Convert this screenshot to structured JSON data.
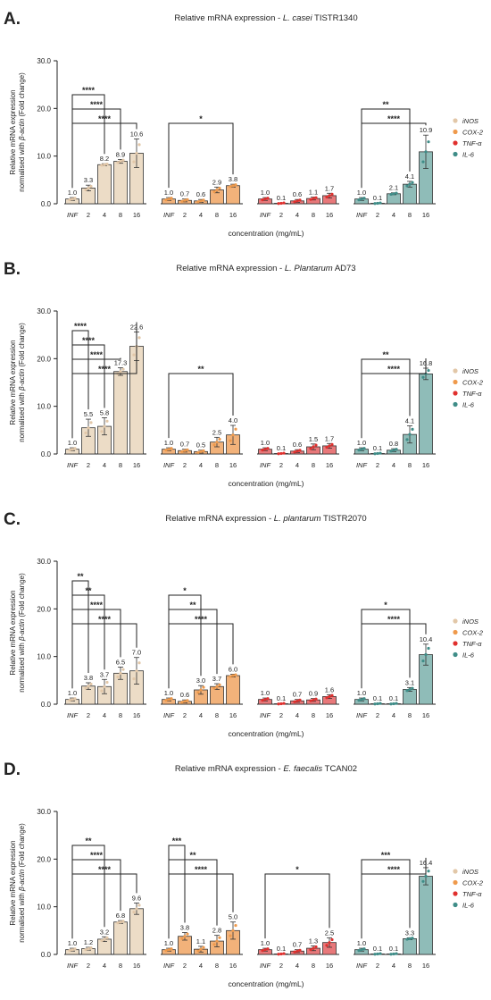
{
  "legend": [
    {
      "label": "iNOS",
      "color": "#ecdcc6",
      "dot": "#e2c7a8"
    },
    {
      "label": "COX-2",
      "color": "#f2b27a",
      "dot": "#ef9a4c"
    },
    {
      "label": "TNF-α",
      "color": "#e8787a",
      "dot": "#e0302e"
    },
    {
      "label": "IL-6",
      "color": "#8fbcb8",
      "dot": "#3f8d88"
    }
  ],
  "ylabel_line1": "Relative mRNA expression",
  "ylabel_line2_prefix": "normalised with ",
  "ylabel_line2_gene": "β-actin",
  "ylabel_line2_suffix": " (Fold change)",
  "xlabel": "concentration (mg/mL)",
  "categories": [
    "INF",
    "2",
    "4",
    "8",
    "16"
  ],
  "chart_data": [
    {
      "type": "bar",
      "panel": "A.",
      "title_prefix": "Relative mRNA expression - ",
      "title_species": "L. casei",
      "title_strain": " TISTR1340",
      "yticks": [
        "0.0",
        "10.0",
        "20.0",
        "30.0"
      ],
      "ylim": [
        0,
        30
      ],
      "series": [
        {
          "name": "iNOS",
          "values": [
            1.0,
            3.3,
            8.2,
            8.9,
            10.6
          ],
          "labels": [
            "1.0",
            "3.3",
            "8.2",
            "8.9",
            "10.6"
          ],
          "err": [
            0.3,
            0.6,
            0.2,
            0.4,
            3.0
          ],
          "sig": [
            {
              "to": 2,
              "text": "****"
            },
            {
              "to": 3,
              "text": "****"
            },
            {
              "to": 4,
              "text": "****"
            }
          ]
        },
        {
          "name": "COX-2",
          "values": [
            1.0,
            0.7,
            0.6,
            2.9,
            3.8
          ],
          "labels": [
            "1.0",
            "0.7",
            "0.6",
            "2.9",
            "3.8"
          ],
          "err": [
            0.3,
            0.3,
            0.3,
            0.6,
            0.3
          ],
          "sig": [
            {
              "to": 4,
              "text": "*"
            }
          ]
        },
        {
          "name": "TNF-α",
          "values": [
            1.0,
            0.1,
            0.6,
            1.1,
            1.7
          ],
          "labels": [
            "1.0",
            "0.1",
            "0.6",
            "1.1",
            "1.7"
          ],
          "err": [
            0.3,
            0.1,
            0.3,
            0.3,
            0.5
          ],
          "sig": []
        },
        {
          "name": "IL-6",
          "values": [
            1.0,
            0.1,
            2.1,
            4.1,
            10.9
          ],
          "labels": [
            "1.0",
            "0.1",
            "2.1",
            "4.1",
            "10.9"
          ],
          "err": [
            0.3,
            0.1,
            0.2,
            0.6,
            3.5
          ],
          "sig": [
            {
              "to": 3,
              "text": "**"
            },
            {
              "to": 4,
              "text": "****"
            }
          ]
        }
      ]
    },
    {
      "type": "bar",
      "panel": "B.",
      "title_prefix": "Relative mRNA expression - ",
      "title_species": "L. Plantarum",
      "title_strain": " AD73",
      "yticks": [
        "0.0",
        "10.0",
        "20.0",
        "30.0"
      ],
      "ylim": [
        0,
        30
      ],
      "series": [
        {
          "name": "iNOS",
          "values": [
            1.0,
            5.5,
            5.8,
            17.3,
            22.6
          ],
          "labels": [
            "1.0",
            "5.5",
            "5.8",
            "17.3",
            "22.6"
          ],
          "err": [
            0.3,
            1.8,
            1.8,
            0.8,
            3.0
          ],
          "sig": [
            {
              "to": 1,
              "text": "****"
            },
            {
              "to": 2,
              "text": "****"
            },
            {
              "to": 3,
              "text": "****"
            },
            {
              "to": 4,
              "text": "****"
            }
          ]
        },
        {
          "name": "COX-2",
          "values": [
            1.0,
            0.7,
            0.5,
            2.5,
            4.0
          ],
          "labels": [
            "1.0",
            "0.7",
            "0.5",
            "2.5",
            "4.0"
          ],
          "err": [
            0.3,
            0.3,
            0.3,
            1.0,
            2.0
          ],
          "sig": [
            {
              "to": 4,
              "text": "**"
            }
          ]
        },
        {
          "name": "TNF-α",
          "values": [
            1.0,
            0.1,
            0.6,
            1.5,
            1.7
          ],
          "labels": [
            "1.0",
            "0.1",
            "0.6",
            "1.5",
            "1.7"
          ],
          "err": [
            0.3,
            0.1,
            0.3,
            0.6,
            0.5
          ],
          "sig": []
        },
        {
          "name": "IL-6",
          "values": [
            1.0,
            0.1,
            0.8,
            4.1,
            16.8
          ],
          "labels": [
            "1.0",
            "0.1",
            "0.8",
            "4.1",
            "16.8"
          ],
          "err": [
            0.3,
            0.1,
            0.3,
            1.8,
            1.2
          ],
          "sig": [
            {
              "to": 3,
              "text": "**"
            },
            {
              "to": 4,
              "text": "****"
            }
          ]
        }
      ]
    },
    {
      "type": "bar",
      "panel": "C.",
      "title_prefix": "Relative mRNA expression - ",
      "title_species": "L. plantarum",
      "title_strain": " TISTR2070",
      "yticks": [
        "0.0",
        "10.0",
        "20.0",
        "30.0"
      ],
      "ylim": [
        0,
        30
      ],
      "series": [
        {
          "name": "iNOS",
          "values": [
            1.0,
            3.8,
            3.7,
            6.5,
            7.0
          ],
          "labels": [
            "1.0",
            "3.8",
            "3.7",
            "6.5",
            "7.0"
          ],
          "err": [
            0.3,
            0.7,
            1.5,
            1.3,
            2.8
          ],
          "sig": [
            {
              "to": 1,
              "text": "**"
            },
            {
              "to": 2,
              "text": "**"
            },
            {
              "to": 3,
              "text": "****"
            },
            {
              "to": 4,
              "text": "****"
            }
          ]
        },
        {
          "name": "COX-2",
          "values": [
            1.0,
            0.6,
            3.0,
            3.7,
            6.0
          ],
          "labels": [
            "1.0",
            "0.6",
            "3.0",
            "3.7",
            "6.0"
          ],
          "err": [
            0.3,
            0.3,
            0.9,
            0.6,
            0.3
          ],
          "sig": [
            {
              "to": 2,
              "text": "*"
            },
            {
              "to": 3,
              "text": "**"
            },
            {
              "to": 4,
              "text": "****"
            }
          ]
        },
        {
          "name": "TNF-α",
          "values": [
            1.0,
            0.1,
            0.7,
            0.9,
            1.6
          ],
          "labels": [
            "1.0",
            "0.1",
            "0.7",
            "0.9",
            "1.6"
          ],
          "err": [
            0.3,
            0.1,
            0.3,
            0.3,
            0.4
          ],
          "sig": []
        },
        {
          "name": "IL-6",
          "values": [
            1.0,
            0.1,
            0.1,
            3.1,
            10.4
          ],
          "labels": [
            "1.0",
            "0.1",
            "0.1",
            "3.1",
            "10.4"
          ],
          "err": [
            0.3,
            0.1,
            0.1,
            0.4,
            2.2
          ],
          "sig": [
            {
              "to": 3,
              "text": "*"
            },
            {
              "to": 4,
              "text": "****"
            }
          ]
        }
      ]
    },
    {
      "type": "bar",
      "panel": "D.",
      "title_prefix": "Relative mRNA expression - ",
      "title_species": "E. faecalis",
      "title_strain": " TCAN02",
      "yticks": [
        "0.0",
        "10.0",
        "20.0",
        "30.0"
      ],
      "ylim": [
        0,
        30
      ],
      "series": [
        {
          "name": "iNOS",
          "values": [
            1.0,
            1.2,
            3.2,
            6.8,
            9.6
          ],
          "labels": [
            "1.0",
            "1.2",
            "3.2",
            "6.8",
            "9.6"
          ],
          "err": [
            0.3,
            0.3,
            0.5,
            0.3,
            1.2
          ],
          "sig": [
            {
              "to": 2,
              "text": "**"
            },
            {
              "to": 3,
              "text": "****"
            },
            {
              "to": 4,
              "text": "****"
            }
          ]
        },
        {
          "name": "COX-2",
          "values": [
            1.0,
            3.8,
            1.1,
            2.8,
            5.0
          ],
          "labels": [
            "1.0",
            "3.8",
            "1.1",
            "2.8",
            "5.0"
          ],
          "err": [
            0.3,
            0.8,
            0.6,
            1.2,
            1.8
          ],
          "sig": [
            {
              "to": 1,
              "text": "***"
            },
            {
              "to": 3,
              "text": "**"
            },
            {
              "to": 4,
              "text": "****"
            }
          ]
        },
        {
          "name": "TNF-α",
          "values": [
            1.0,
            0.1,
            0.7,
            1.3,
            2.5
          ],
          "labels": [
            "1.0",
            "0.1",
            "0.7",
            "1.3",
            "2.5"
          ],
          "err": [
            0.3,
            0.1,
            0.3,
            0.5,
            1.0
          ],
          "sig": [
            {
              "to": 4,
              "text": "*"
            }
          ]
        },
        {
          "name": "IL-6",
          "values": [
            1.0,
            0.1,
            0.1,
            3.3,
            16.4
          ],
          "labels": [
            "1.0",
            "0.1",
            "0.1",
            "3.3",
            "16.4"
          ],
          "err": [
            0.3,
            0.1,
            0.1,
            0.2,
            1.8
          ],
          "sig": [
            {
              "to": 3,
              "text": "***"
            },
            {
              "to": 4,
              "text": "****"
            }
          ]
        }
      ]
    }
  ]
}
